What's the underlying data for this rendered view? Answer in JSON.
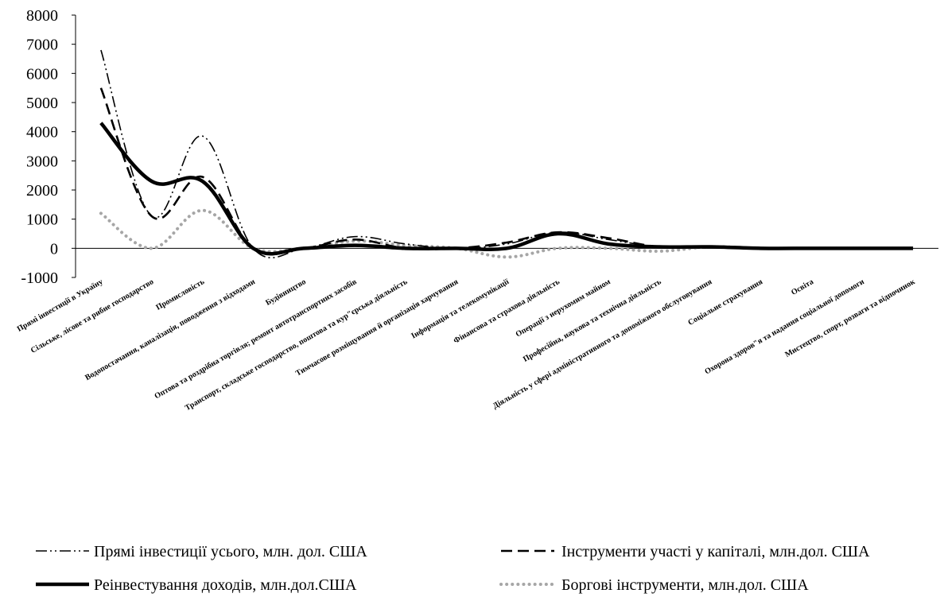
{
  "chart_data": {
    "type": "line",
    "title": "",
    "xlabel": "",
    "ylabel": "",
    "ylim": [
      -1000,
      8000
    ],
    "yticks": [
      8000,
      7000,
      6000,
      5000,
      4000,
      3000,
      2000,
      1000,
      0,
      -1000
    ],
    "grid": false,
    "legend_position": "bottom",
    "categories": [
      "Прямі інвестиції в Україну",
      "Сільське, лісове та рибне господарство",
      "Промисловість",
      "Водопостачання, каналізація, поводження з відходами",
      "Будівництво",
      "Оптова та роздрібна торгівля; ремонт автотранспортних засобів",
      "Транспорт, складське господарство, поштова та кур\"єрська діяльність",
      "Тимчасове розміщування й організація харчування",
      "Інформація та телекомунікації",
      "Фінансова та страхова діяльність",
      "Операції з нерухомим майном",
      "Професійна, наукова та технічна діяльність",
      "Діяльність у сфері адміністративного та допоміжного обслуговування",
      "Соціальне страхування",
      "Освіта",
      "Охорона здоров\"я та надання соціальної допомоги",
      "Мистецтво, спорт, розваги та відпочинок"
    ],
    "series": [
      {
        "name": "Прямі інвестиції усього, млн. дол. США",
        "style": "dash-dot-dot",
        "color": "#000000",
        "values": [
          6800,
          1100,
          3850,
          0,
          0,
          400,
          150,
          0,
          150,
          550,
          300,
          50,
          50,
          0,
          0,
          0,
          0
        ]
      },
      {
        "name": "Інструменти участі у капіталі, млн.дол. США",
        "style": "dash",
        "color": "#000000",
        "values": [
          5500,
          1100,
          2450,
          0,
          0,
          300,
          0,
          0,
          200,
          550,
          350,
          50,
          50,
          0,
          0,
          0,
          0
        ]
      },
      {
        "name": "Реінвестування доходів, млн.дол.США",
        "style": "solid-thick",
        "color": "#000000",
        "values": [
          4300,
          2300,
          2300,
          0,
          0,
          100,
          0,
          0,
          0,
          500,
          150,
          50,
          50,
          0,
          0,
          0,
          0
        ]
      },
      {
        "name": "Боргові інструменти, млн.дол. США",
        "style": "dot",
        "color": "#a6a6a6",
        "values": [
          1200,
          0,
          1300,
          0,
          0,
          250,
          100,
          0,
          -300,
          0,
          0,
          -100,
          50,
          0,
          0,
          0,
          0
        ]
      }
    ]
  }
}
